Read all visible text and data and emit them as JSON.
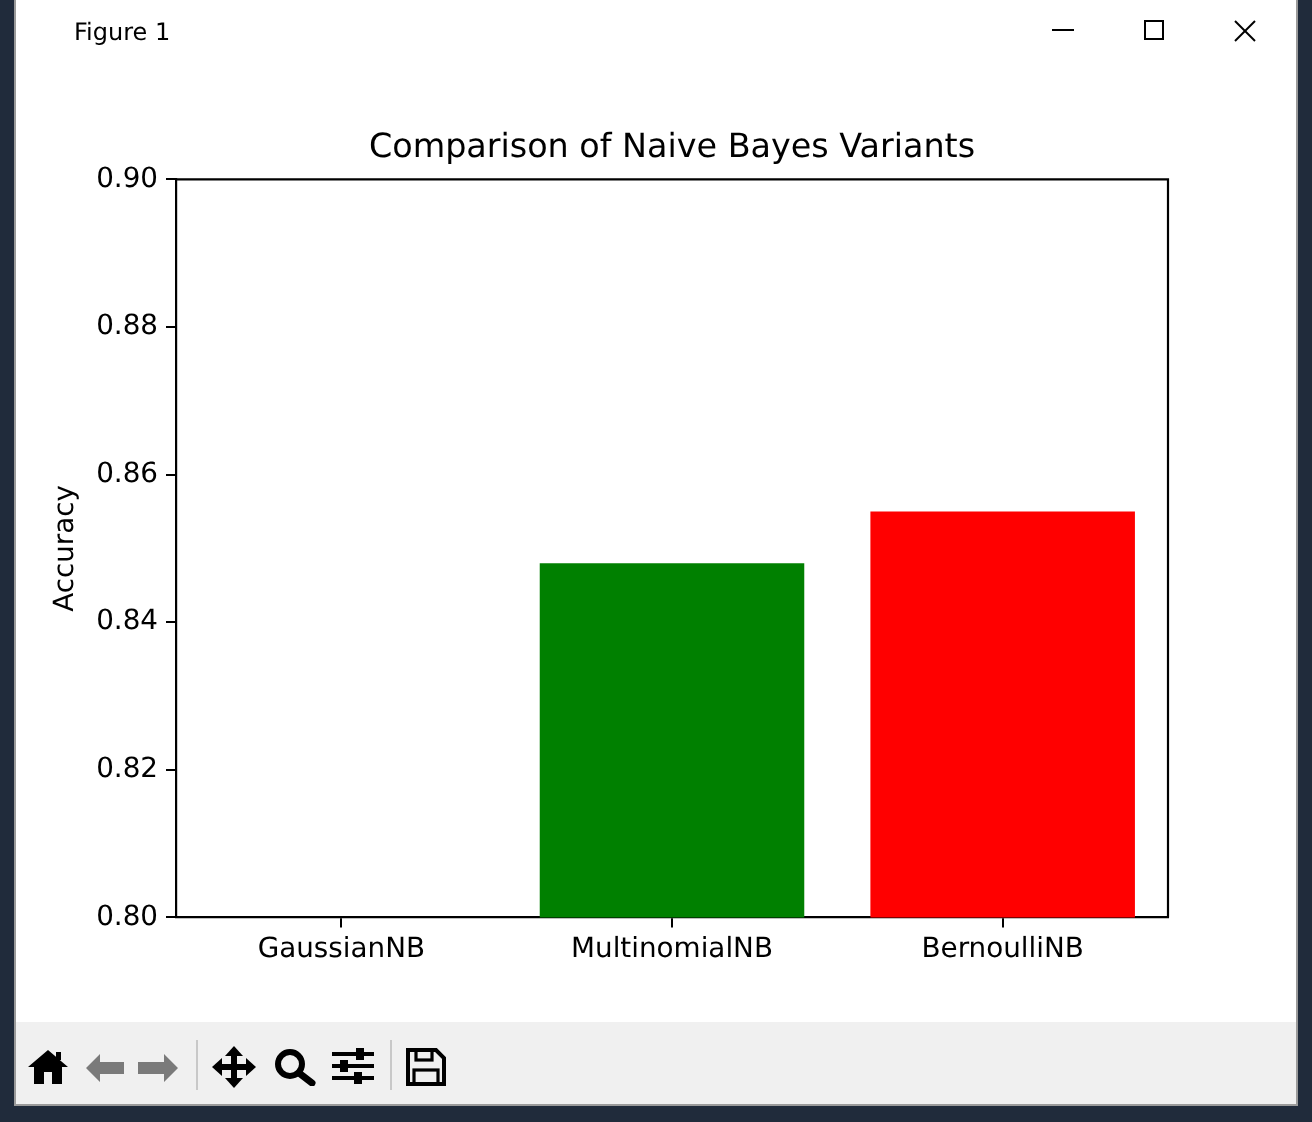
{
  "chart_data": {
    "type": "bar",
    "title": "Comparison of Naive Bayes Variants",
    "ylabel": "Accuracy",
    "categories": [
      "GaussianNB",
      "MultinomialNB",
      "BernoulliNB"
    ],
    "values": [
      null,
      0.848,
      0.855
    ],
    "colors": [
      null,
      "#008000",
      "#ff0000"
    ],
    "ylim": [
      0.8,
      0.9
    ],
    "yticks": [
      {
        "value": 0.8,
        "label": "0.80"
      },
      {
        "value": 0.82,
        "label": "0.82"
      },
      {
        "value": 0.84,
        "label": "0.84"
      },
      {
        "value": 0.86,
        "label": "0.86"
      },
      {
        "value": 0.88,
        "label": "0.88"
      },
      {
        "value": 0.9,
        "label": "0.90"
      }
    ],
    "annotations": [
      "Figure 1"
    ]
  }
}
